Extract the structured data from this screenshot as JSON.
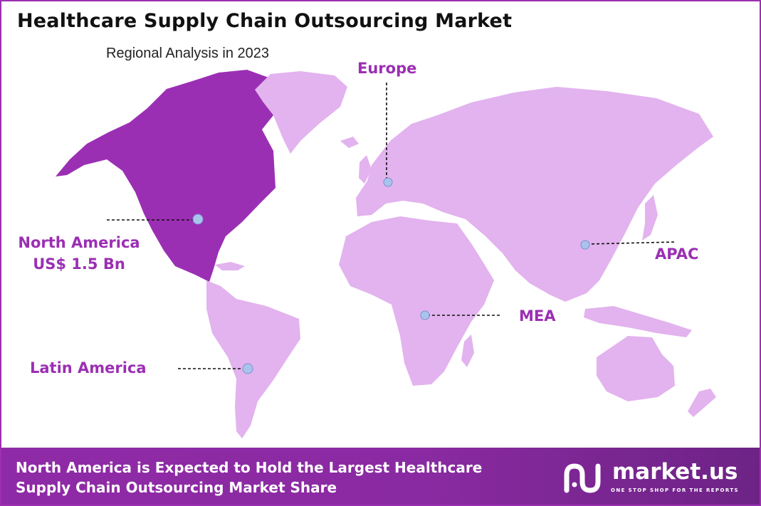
{
  "header": {
    "title": "Healthcare Supply Chain Outsourcing Market",
    "subtitle": "Regional Analysis in 2023"
  },
  "regions": {
    "europe": {
      "name": "Europe"
    },
    "north_america": {
      "name": "North America",
      "value": "US$ 1.5 Bn"
    },
    "apac": {
      "name": "APAC"
    },
    "mea": {
      "name": "MEA"
    },
    "latin_america": {
      "name": "Latin America"
    }
  },
  "footer": {
    "line1": "North America is Expected to Hold the Largest Healthcare",
    "line2": "Supply Chain Outsourcing Market Share"
  },
  "brand": {
    "name": "market.us",
    "tagline": "ONE STOP SHOP FOR THE REPORTS"
  },
  "colors": {
    "highlight_region": "#9b2fb3",
    "other_regions": "#e2b3ee",
    "accent_text": "#9b2fb3",
    "marker": "#a9c4ec"
  }
}
